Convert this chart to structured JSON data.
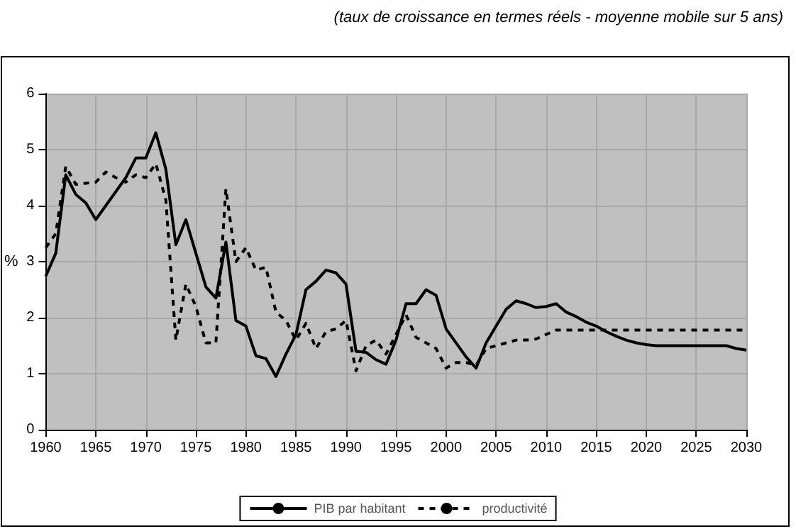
{
  "chart_data": {
    "type": "line",
    "subtitle": "(taux de croissance en termes réels - moyenne mobile sur 5 ans)",
    "ylabel": "%",
    "x": [
      1960,
      1961,
      1962,
      1963,
      1964,
      1965,
      1966,
      1967,
      1968,
      1969,
      1970,
      1971,
      1972,
      1973,
      1974,
      1975,
      1976,
      1977,
      1978,
      1979,
      1980,
      1981,
      1982,
      1983,
      1984,
      1985,
      1986,
      1987,
      1988,
      1989,
      1990,
      1991,
      1992,
      1993,
      1994,
      1995,
      1996,
      1997,
      1998,
      1999,
      2000,
      2001,
      2002,
      2003,
      2004,
      2005,
      2006,
      2007,
      2008,
      2009,
      2010,
      2011,
      2012,
      2013,
      2014,
      2015,
      2016,
      2017,
      2018,
      2019,
      2020,
      2021,
      2022,
      2023,
      2024,
      2025,
      2026,
      2027,
      2028,
      2029,
      2030
    ],
    "series": [
      {
        "name": "PIB par habitant",
        "color": "#000000",
        "line_style": "solid",
        "values": [
          2.74,
          3.15,
          4.55,
          4.2,
          4.05,
          3.75,
          4.0,
          4.25,
          4.5,
          4.85,
          4.85,
          5.3,
          4.65,
          3.3,
          3.75,
          3.15,
          2.55,
          2.35,
          3.35,
          1.95,
          1.85,
          1.32,
          1.27,
          0.95,
          1.35,
          1.7,
          2.5,
          2.65,
          2.85,
          2.8,
          2.6,
          1.4,
          1.38,
          1.25,
          1.17,
          1.6,
          2.25,
          2.25,
          2.5,
          2.4,
          1.8,
          1.55,
          1.3,
          1.1,
          1.55,
          1.85,
          2.15,
          2.3,
          2.25,
          2.18,
          2.2,
          2.25,
          2.1,
          2.02,
          1.92,
          1.85,
          1.75,
          1.67,
          1.6,
          1.55,
          1.52,
          1.5,
          1.5,
          1.5,
          1.5,
          1.5,
          1.5,
          1.5,
          1.5,
          1.45,
          1.42
        ]
      },
      {
        "name": "productivité",
        "color": "#000000",
        "line_style": "dashed",
        "values": [
          3.25,
          3.5,
          4.7,
          4.38,
          4.4,
          4.42,
          4.6,
          4.5,
          4.42,
          4.55,
          4.5,
          4.75,
          4.1,
          1.6,
          2.6,
          2.2,
          1.55,
          1.55,
          4.3,
          3.0,
          3.25,
          2.85,
          2.9,
          2.1,
          1.95,
          1.6,
          1.9,
          1.45,
          1.75,
          1.8,
          1.95,
          1.05,
          1.5,
          1.6,
          1.35,
          1.7,
          2.05,
          1.65,
          1.55,
          1.45,
          1.1,
          1.2,
          1.2,
          1.15,
          1.45,
          1.5,
          1.55,
          1.6,
          1.6,
          1.62,
          1.7,
          1.78,
          1.78,
          1.78,
          1.78,
          1.78,
          1.78,
          1.78,
          1.78,
          1.78,
          1.78,
          1.78,
          1.78,
          1.78,
          1.78,
          1.78,
          1.78,
          1.78,
          1.78,
          1.78,
          1.78
        ]
      }
    ],
    "xlim": [
      1960,
      2030
    ],
    "xticks": [
      1960,
      1965,
      1970,
      1975,
      1980,
      1985,
      1990,
      1995,
      2000,
      2005,
      2010,
      2015,
      2020,
      2025,
      2030
    ],
    "ylim": [
      0,
      6
    ],
    "yticks": [
      0,
      1,
      2,
      3,
      4,
      5,
      6
    ],
    "grid": true,
    "legend": "bottom",
    "marker": "none"
  }
}
